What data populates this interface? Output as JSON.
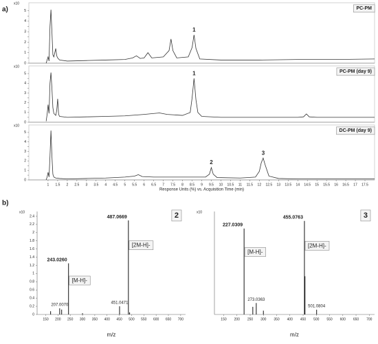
{
  "panel_labels": [
    "a)",
    "b)"
  ],
  "chart_data": [
    {
      "type": "line",
      "title": "PC-PM",
      "y_multiplier": "x10",
      "color": "#333333",
      "x": [
        0.9,
        0.95,
        1.0,
        1.05,
        1.1,
        1.15,
        1.2,
        1.25,
        1.3,
        1.35,
        1.4,
        1.45,
        1.5,
        1.6,
        2,
        3,
        4,
        5,
        5.4,
        5.6,
        5.8,
        6.0,
        6.2,
        6.4,
        7.0,
        7.3,
        7.4,
        7.5,
        7.7,
        8.3,
        8.5,
        8.6,
        8.7,
        8.9,
        10,
        12,
        14,
        16,
        18
      ],
      "values": [
        0,
        0.3,
        0.6,
        0.2,
        3.5,
        5.1,
        3.0,
        0.8,
        0.6,
        1.0,
        1.4,
        0.7,
        0.5,
        0.3,
        0.2,
        0.25,
        0.3,
        0.35,
        0.5,
        0.7,
        0.45,
        0.5,
        1.0,
        0.5,
        0.6,
        1.2,
        2.3,
        1.2,
        0.5,
        0.6,
        1.5,
        2.7,
        1.4,
        0.4,
        0.3,
        0.3,
        0.35,
        0.35,
        0.4
      ],
      "point_labels": [
        null,
        null,
        null,
        null,
        null,
        null,
        null,
        null,
        null,
        null,
        null,
        null,
        null,
        null,
        null,
        null,
        null,
        null,
        null,
        null,
        null,
        null,
        null,
        null,
        null,
        null,
        null,
        null,
        null,
        null,
        null,
        "1",
        null,
        null,
        null,
        null,
        null,
        null,
        null
      ],
      "xlim": [
        0,
        18
      ],
      "ylim": [
        0,
        5.5
      ],
      "yticks": [
        0,
        0.5,
        1,
        1.5,
        2,
        2.5,
        3,
        3.5,
        4,
        4.5,
        5
      ]
    },
    {
      "type": "line",
      "title": "PC-PM (day 9)",
      "y_multiplier": "x10",
      "color": "#333333",
      "x": [
        0.9,
        0.95,
        1.0,
        1.05,
        1.1,
        1.15,
        1.2,
        1.25,
        1.3,
        1.4,
        1.45,
        1.5,
        1.55,
        1.6,
        2,
        3,
        4,
        5,
        6,
        6.8,
        7.2,
        8,
        8.4,
        8.5,
        8.6,
        8.7,
        8.8,
        9,
        10,
        12,
        14,
        14.3,
        14.45,
        14.6,
        15,
        16,
        18
      ],
      "values": [
        0.1,
        0.8,
        1.8,
        0.9,
        4.0,
        5.1,
        3.5,
        1.5,
        0.9,
        0.7,
        1.2,
        2.4,
        0.8,
        0.6,
        0.5,
        0.55,
        0.6,
        0.65,
        0.8,
        0.95,
        0.8,
        0.7,
        1.0,
        2.5,
        4.5,
        2.3,
        1.0,
        0.6,
        0.5,
        0.5,
        0.5,
        0.55,
        0.85,
        0.55,
        0.5,
        0.5,
        0.5
      ],
      "point_labels": [
        null,
        null,
        null,
        null,
        null,
        null,
        null,
        null,
        null,
        null,
        null,
        null,
        null,
        null,
        null,
        null,
        null,
        null,
        null,
        null,
        null,
        null,
        null,
        null,
        "1",
        null,
        null,
        null,
        null,
        null,
        null,
        null,
        null,
        null,
        null,
        null,
        null
      ],
      "xlim": [
        0,
        18
      ],
      "ylim": [
        0,
        5.5
      ],
      "yticks": [
        0,
        0.5,
        1,
        1.5,
        2,
        2.5,
        3,
        3.5,
        4,
        4.5,
        5
      ]
    },
    {
      "type": "line",
      "title": "DC-PM (day 9)",
      "y_multiplier": "x10",
      "color": "#333333",
      "x": [
        0.9,
        0.95,
        1.0,
        1.05,
        1.1,
        1.15,
        1.2,
        1.25,
        1.3,
        1.4,
        1.6,
        2,
        3,
        4,
        5,
        5.5,
        5.7,
        5.9,
        6.5,
        8,
        9.2,
        9.4,
        9.5,
        9.6,
        9.8,
        11,
        11.8,
        12.0,
        12.1,
        12.2,
        12.3,
        12.5,
        13,
        14,
        16,
        18
      ],
      "values": [
        0,
        0.3,
        0.8,
        0.3,
        2.5,
        5.2,
        2.5,
        0.6,
        0.3,
        0.2,
        0.15,
        0.1,
        0.15,
        0.2,
        0.3,
        0.4,
        0.55,
        0.35,
        0.3,
        0.3,
        0.3,
        0.6,
        1.3,
        0.6,
        0.25,
        0.2,
        0.3,
        0.9,
        1.8,
        2.3,
        1.6,
        0.4,
        0.15,
        0.1,
        0.1,
        0.1
      ],
      "point_labels": [
        null,
        null,
        null,
        null,
        null,
        null,
        null,
        null,
        null,
        null,
        null,
        null,
        null,
        null,
        null,
        null,
        null,
        null,
        null,
        null,
        null,
        null,
        "2",
        null,
        null,
        null,
        null,
        null,
        null,
        "3",
        null,
        null,
        null,
        null,
        null,
        null
      ],
      "xlim": [
        0,
        18
      ],
      "ylim": [
        0,
        5.5
      ],
      "yticks": [
        0,
        0.5,
        1,
        1.5,
        2,
        2.5,
        3,
        3.5,
        4,
        4.5,
        5
      ],
      "xticks": [
        1,
        1.5,
        2,
        2.5,
        3,
        3.5,
        4,
        4.5,
        5,
        5.5,
        6,
        6.5,
        7,
        7.5,
        8,
        8.5,
        9,
        9.5,
        10,
        10.5,
        11,
        11.5,
        12,
        12.5,
        13,
        13.5,
        14,
        14.5,
        15,
        15.5,
        16,
        16.5,
        17,
        17.5
      ],
      "xlabel": "Response Units (%) vs. Acquisition Time (min)"
    },
    {
      "type": "stem",
      "title": "2",
      "y_multiplier": "x10",
      "color": "#111111",
      "x": [
        170,
        207.007,
        215,
        243.026,
        300,
        451.0471,
        487.0669,
        492
      ],
      "values": [
        0.08,
        0.15,
        0.12,
        1.25,
        0.03,
        0.2,
        2.3,
        0.05
      ],
      "point_labels": [
        null,
        "207.0070",
        null,
        "243.0260",
        null,
        "451.0471",
        "487.0669",
        null
      ],
      "ion_labels": [
        null,
        null,
        null,
        "[M-H]-",
        null,
        null,
        "[2M-H]-",
        null
      ],
      "xlim": [
        115,
        720
      ],
      "ylim": [
        0,
        2.45
      ],
      "yticks": [
        0,
        0.2,
        0.4,
        0.6,
        0.8,
        1,
        1.2,
        1.4,
        1.6,
        1.8,
        2,
        2.2,
        2.4
      ],
      "xticks": [
        150,
        200,
        250,
        300,
        350,
        400,
        450,
        500,
        550,
        600,
        650,
        700
      ],
      "xlabel": "m/z"
    },
    {
      "type": "stem",
      "title": "3",
      "y_multiplier": "x10",
      "color": "#111111",
      "x": [
        227.0309,
        260,
        273.0363,
        300,
        455.0763,
        457,
        501.0804
      ],
      "values": [
        0.9,
        0.08,
        0.12,
        0.04,
        0.98,
        0.4,
        0.05
      ],
      "point_labels": [
        "227.0309",
        null,
        "273.0363",
        null,
        "455.0763",
        null,
        "501.0804"
      ],
      "ion_labels": [
        "[M-H]-",
        null,
        null,
        null,
        "[2M-H]-",
        null,
        null
      ],
      "xlim": [
        115,
        720
      ],
      "ylim": [
        0,
        1.05
      ],
      "xticks": [
        150,
        200,
        250,
        300,
        350,
        400,
        450,
        500,
        550,
        600,
        650,
        700
      ],
      "xlabel": "m/z"
    }
  ]
}
